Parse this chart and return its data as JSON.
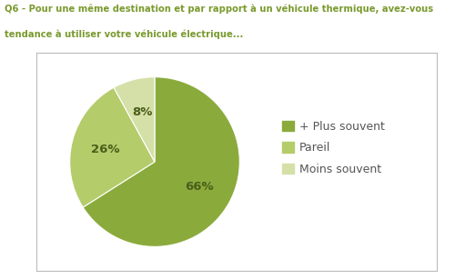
{
  "title_line1": "Q6 - Pour une même destination et par rapport à un véhicule thermique, avez-vous",
  "title_line2": "tendance à utiliser votre véhicule électrique...",
  "slices": [
    66,
    26,
    8
  ],
  "labels": [
    "66%",
    "26%",
    "8%"
  ],
  "colors": [
    "#8aab3c",
    "#b5cc6a",
    "#d4e0a8"
  ],
  "legend_labels": [
    "+ Plus souvent",
    "Pareil",
    "Moins souvent"
  ],
  "title_color": "#7a9a2e",
  "label_fontsize": 9.5,
  "legend_fontsize": 9,
  "background_color": "#ffffff",
  "box_bg": "#ffffff",
  "start_angle": 90,
  "label_colors": [
    "#4a5e1a",
    "#4a5e1a",
    "#4a5e1a"
  ]
}
